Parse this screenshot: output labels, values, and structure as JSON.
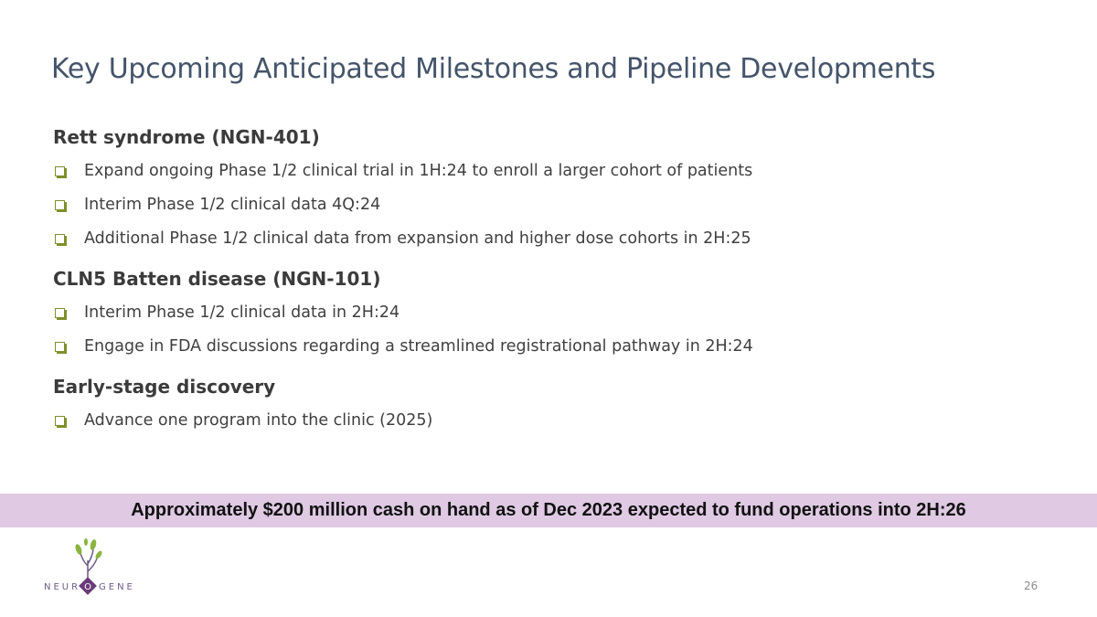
{
  "title": "Key Upcoming Anticipated Milestones and Pipeline Developments",
  "sections": [
    {
      "heading": "Rett syndrome (NGN-401)",
      "items": [
        "Expand ongoing Phase 1/2 clinical trial in 1H:24 to enroll a larger cohort of patients",
        "Interim Phase 1/2 clinical data 4Q:24",
        "Additional Phase 1/2 clinical data from expansion and higher dose cohorts in 2H:25"
      ]
    },
    {
      "heading": "CLN5 Batten disease (NGN-101)",
      "items": [
        "Interim Phase 1/2 clinical data in 2H:24",
        "Engage in FDA discussions regarding a streamlined registrational pathway in 2H:24"
      ]
    },
    {
      "heading": "Early-stage discovery",
      "items": [
        "Advance one program into the clinic (2025)"
      ]
    }
  ],
  "banner": "Approximately $200 million cash on hand as of Dec 2023 expected to fund operations into 2H:26",
  "logo": {
    "left": "NEUR",
    "middle": "O",
    "right": "GENE"
  },
  "page_number": "26"
}
